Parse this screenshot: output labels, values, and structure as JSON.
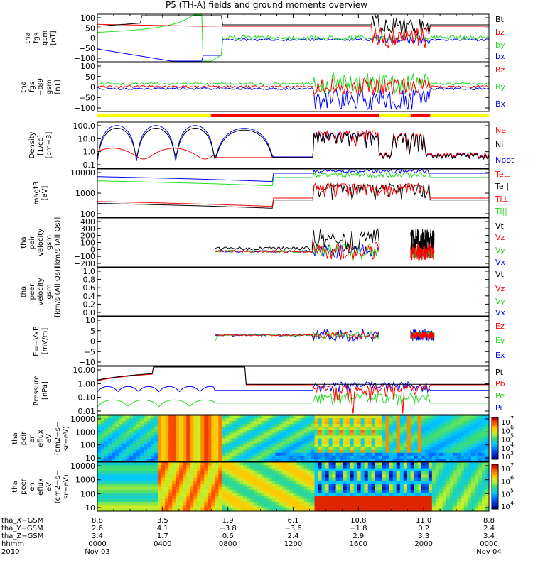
{
  "title": "P5 (TH-A) fields and ground moments overview",
  "colors": {
    "black": "#000000",
    "red": "#ff0000",
    "green": "#22dd22",
    "blue": "#0000ff",
    "yellow": "#ffff00"
  },
  "chart_data": [
    {
      "type": "line",
      "panel": "fgs_gsm",
      "ylabel": [
        "tha",
        "fgs",
        "gsm",
        "[nT]"
      ],
      "ylim": [
        -100,
        100
      ],
      "yticks": [
        "100",
        "50",
        "0",
        "−50",
        "−100"
      ],
      "series": [
        {
          "name": "Bt",
          "color": "#000000"
        },
        {
          "name": "bz",
          "color": "#ff0000"
        },
        {
          "name": "by",
          "color": "#22dd22"
        },
        {
          "name": "bx",
          "color": "#0000ff"
        }
      ]
    },
    {
      "type": "line",
      "panel": "fgs_gsm_t89",
      "ylabel": [
        "tha",
        "fgs",
        "−t89",
        "gsm",
        "[nT]"
      ],
      "ylim": [
        -120,
        120
      ],
      "yticks": [
        "100",
        "50",
        "0",
        "−50",
        "−100"
      ],
      "series": [
        {
          "name": "Bz",
          "color": "#ff0000"
        },
        {
          "name": "By",
          "color": "#22dd22"
        },
        {
          "name": "Bx",
          "color": "#0000ff"
        }
      ]
    },
    {
      "type": "line",
      "panel": "density",
      "ylabel": [
        "Density",
        "[1/cc]",
        "[cm−3]"
      ],
      "ylim": [
        0.1,
        100
      ],
      "log": true,
      "yticks": [
        "100.0",
        "10.0",
        "1.0",
        "0.1"
      ],
      "series": [
        {
          "name": "Ne",
          "color": "#ff0000"
        },
        {
          "name": "Ni",
          "color": "#000000"
        },
        {
          "name": "Npot",
          "color": "#0000ff"
        }
      ]
    },
    {
      "type": "line",
      "panel": "temperature",
      "ylabel": [
        "magt3",
        "[eV]"
      ],
      "ylim": [
        30,
        10000
      ],
      "log": true,
      "yticks": [
        "10000",
        "1000",
        "100"
      ],
      "series": [
        {
          "name": "Te⊥",
          "color": "#ff0000"
        },
        {
          "name": "Te||",
          "color": "#000000"
        },
        {
          "name": "Ti⊥",
          "color": "#ff0000"
        },
        {
          "name": "Ti||",
          "color": "#22dd22"
        }
      ]
    },
    {
      "type": "line",
      "panel": "peir_velocity",
      "ylabel": [
        "tha",
        "peir",
        "velocity",
        "gsm",
        "[km/s (All Qs)]"
      ],
      "ylim": [
        -200,
        400
      ],
      "yticks": [
        "400",
        "300",
        "200",
        "100",
        "0",
        "−100",
        "−200"
      ],
      "series": [
        {
          "name": "Vt",
          "color": "#000000"
        },
        {
          "name": "Vz",
          "color": "#ff0000"
        },
        {
          "name": "Vy",
          "color": "#22dd22"
        },
        {
          "name": "Vx",
          "color": "#0000ff"
        }
      ]
    },
    {
      "type": "line",
      "panel": "peer_velocity",
      "ylabel": [
        "tha",
        "peer",
        "velocity",
        "gsm",
        "[km/s (All Qs)]"
      ],
      "ylim": [
        0,
        1
      ],
      "yticks": [
        "1.0",
        "0.8",
        "0.6",
        "0.4",
        "0.2",
        "0.0"
      ],
      "series": [
        {
          "name": "Vt",
          "color": "#000000"
        },
        {
          "name": "Vz",
          "color": "#ff0000"
        },
        {
          "name": "Vy",
          "color": "#22dd22"
        },
        {
          "name": "Vx",
          "color": "#0000ff"
        }
      ]
    },
    {
      "type": "line",
      "panel": "efield",
      "ylabel": [
        "E=−VxB",
        "[mV/m]"
      ],
      "ylim": [
        -12,
        10
      ],
      "yticks": [
        "10",
        "5",
        "0",
        "−5",
        "−10"
      ],
      "series": [
        {
          "name": "Ez",
          "color": "#ff0000"
        },
        {
          "name": "Ey",
          "color": "#22dd22"
        },
        {
          "name": "Ex",
          "color": "#0000ff"
        }
      ]
    },
    {
      "type": "line",
      "panel": "pressure",
      "ylabel": [
        "Pressure",
        "[nPa]"
      ],
      "ylim": [
        0.005,
        30
      ],
      "log": true,
      "yticks": [
        "10.00",
        "1.00",
        "0.10",
        "0.01"
      ],
      "series": [
        {
          "name": "Pt",
          "color": "#000000"
        },
        {
          "name": "Pb",
          "color": "#ff0000"
        },
        {
          "name": "Pe",
          "color": "#22dd22"
        },
        {
          "name": "Pi",
          "color": "#0000ff"
        }
      ]
    },
    {
      "type": "heatmap",
      "panel": "peir_eflux",
      "ylabel": [
        "tha",
        "peir",
        "en",
        "eflux",
        "eV",
        "(cm2−s−",
        "sr−eV)"
      ],
      "yticks": [
        "10000",
        "1000",
        "100",
        "10"
      ],
      "colorbar": {
        "ticks": [
          "10",
          "10",
          "10",
          "10",
          "10"
        ],
        "exponents": [
          "7",
          "6",
          "5",
          "4",
          "3"
        ]
      }
    },
    {
      "type": "heatmap",
      "panel": "peer_eflux",
      "ylabel": [
        "tha",
        "peer",
        "en",
        "eflux",
        "eV",
        "(cm2−s−",
        "sr−eV)"
      ],
      "yticks": [
        "10000",
        "1000",
        "100",
        "10"
      ],
      "colorbar": {
        "ticks": [
          "10",
          "10",
          "10",
          "10"
        ],
        "exponents": [
          "7",
          "6",
          "5",
          "4"
        ]
      }
    }
  ],
  "x_axis": {
    "rows": [
      {
        "label": "tha_X−GSM",
        "values": [
          "8.8",
          "3.5",
          "1.9",
          "6.1",
          "10.8",
          "11.0",
          "8.8"
        ]
      },
      {
        "label": "tha_Y−GSM",
        "values": [
          "2.6",
          "4.1",
          "−3.8",
          "−3.6",
          "−1.8",
          "0.2",
          "2.4"
        ]
      },
      {
        "label": "tha_Z−GSM",
        "values": [
          "3.4",
          "1.7",
          "0.6",
          "2.4",
          "2.9",
          "3.3",
          "3.4"
        ]
      },
      {
        "label": "hhmm",
        "values": [
          "0000",
          "0400",
          "0800",
          "1200",
          "1600",
          "2000",
          "0000"
        ]
      },
      {
        "label": "2010",
        "values": [
          "Nov 03",
          "",
          "",
          "",
          "",
          "",
          "Nov 04"
        ]
      }
    ]
  }
}
